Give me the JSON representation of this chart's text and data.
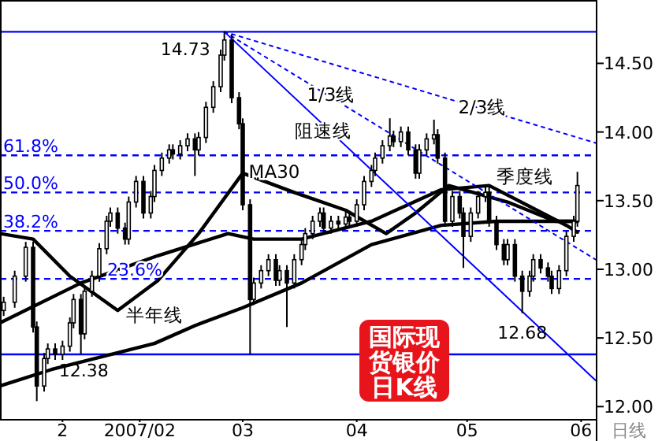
{
  "chart_data": {
    "type": "candlestick",
    "title": "国际现货银价日K线",
    "x": [
      "2006-12-26",
      "2006-12-29",
      "2007-01-01",
      "2007-01-03",
      "2007-01-04",
      "2007-01-06",
      "2007-01-07",
      "2007-01-09",
      "2007-01-11",
      "2007-01-13",
      "2007-01-14",
      "2007-01-16",
      "2007-01-17",
      "2007-01-19",
      "2007-01-21",
      "2007-01-23",
      "2007-01-24",
      "2007-01-26",
      "2007-01-28",
      "2007-01-29",
      "2007-01-31",
      "2007-02-02",
      "2007-02-04",
      "2007-02-05",
      "2007-02-07",
      "2007-02-09",
      "2007-02-10",
      "2007-02-12",
      "2007-02-14",
      "2007-02-16",
      "2007-02-17",
      "2007-02-19",
      "2007-02-21",
      "2007-02-23",
      "2007-02-24",
      "2007-02-26",
      "2007-02-28",
      "2007-03-01",
      "2007-03-03",
      "2007-03-04",
      "2007-03-06",
      "2007-03-08",
      "2007-03-10",
      "2007-03-11",
      "2007-03-13",
      "2007-03-15",
      "2007-03-17",
      "2007-03-18",
      "2007-03-20",
      "2007-03-22",
      "2007-03-23",
      "2007-03-25",
      "2007-03-27",
      "2007-03-29",
      "2007-03-30",
      "2007-04-01",
      "2007-04-03",
      "2007-04-05",
      "2007-04-06",
      "2007-04-08",
      "2007-04-10",
      "2007-04-11",
      "2007-04-13",
      "2007-04-15",
      "2007-04-17",
      "2007-04-18",
      "2007-04-20",
      "2007-04-22",
      "2007-04-23",
      "2007-04-25",
      "2007-04-27",
      "2007-04-29",
      "2007-04-30",
      "2007-05-02",
      "2007-05-04",
      "2007-05-06",
      "2007-05-07",
      "2007-05-09",
      "2007-05-11",
      "2007-05-12",
      "2007-05-14",
      "2007-05-16",
      "2007-05-18",
      "2007-05-19",
      "2007-05-21",
      "2007-05-23",
      "2007-05-24",
      "2007-05-26",
      "2007-05-28",
      "2007-05-30",
      "2007-05-31"
    ],
    "ohlc": [
      [
        12.7,
        12.8,
        12.66,
        12.76
      ],
      [
        12.76,
        12.99,
        12.72,
        12.95
      ],
      [
        12.95,
        13.2,
        12.91,
        13.16
      ],
      [
        13.16,
        13.2,
        12.54,
        12.58
      ],
      [
        12.58,
        12.62,
        12.04,
        12.15
      ],
      [
        12.15,
        12.39,
        12.11,
        12.35
      ],
      [
        12.35,
        12.46,
        12.31,
        12.42
      ],
      [
        12.42,
        12.46,
        12.34,
        12.38
      ],
      [
        12.38,
        12.48,
        12.34,
        12.44
      ],
      [
        12.44,
        12.65,
        12.4,
        12.61
      ],
      [
        12.61,
        12.82,
        12.57,
        12.78
      ],
      [
        12.78,
        12.82,
        12.38,
        12.53
      ],
      [
        12.53,
        12.88,
        12.49,
        12.84
      ],
      [
        12.84,
        12.99,
        12.8,
        12.95
      ],
      [
        12.95,
        13.19,
        12.91,
        13.15
      ],
      [
        13.15,
        13.39,
        13.11,
        13.35
      ],
      [
        13.35,
        13.45,
        13.31,
        13.41
      ],
      [
        13.41,
        13.45,
        13.26,
        13.3
      ],
      [
        13.3,
        13.34,
        13.18,
        13.22
      ],
      [
        13.22,
        13.53,
        13.18,
        13.49
      ],
      [
        13.49,
        13.68,
        13.45,
        13.64
      ],
      [
        13.64,
        13.68,
        13.37,
        13.41
      ],
      [
        13.41,
        13.57,
        13.37,
        13.53
      ],
      [
        13.53,
        13.76,
        13.49,
        13.72
      ],
      [
        13.72,
        13.85,
        13.68,
        13.81
      ],
      [
        13.81,
        13.91,
        13.77,
        13.87
      ],
      [
        13.87,
        13.91,
        13.8,
        13.84
      ],
      [
        13.84,
        13.94,
        13.8,
        13.9
      ],
      [
        13.9,
        13.99,
        13.86,
        13.95
      ],
      [
        13.95,
        13.99,
        13.68,
        13.87
      ],
      [
        13.87,
        14.0,
        13.83,
        13.96
      ],
      [
        13.96,
        14.22,
        13.92,
        14.18
      ],
      [
        14.18,
        14.37,
        14.14,
        14.33
      ],
      [
        14.33,
        14.6,
        14.29,
        14.56
      ],
      [
        14.56,
        14.73,
        14.52,
        14.67
      ],
      [
        14.67,
        14.71,
        14.21,
        14.25
      ],
      [
        14.25,
        14.29,
        14.02,
        14.06
      ],
      [
        14.06,
        14.1,
        13.43,
        13.47
      ],
      [
        13.47,
        13.51,
        12.38,
        12.78
      ],
      [
        12.78,
        12.94,
        12.74,
        12.9
      ],
      [
        12.9,
        13.03,
        12.86,
        12.99
      ],
      [
        12.99,
        13.11,
        12.95,
        13.07
      ],
      [
        13.07,
        13.11,
        12.88,
        12.92
      ],
      [
        12.92,
        13.03,
        12.88,
        12.99
      ],
      [
        12.99,
        13.03,
        12.58,
        12.9
      ],
      [
        12.9,
        13.11,
        12.86,
        13.07
      ],
      [
        13.07,
        13.22,
        13.03,
        13.18
      ],
      [
        13.18,
        13.3,
        13.14,
        13.26
      ],
      [
        13.26,
        13.39,
        13.22,
        13.35
      ],
      [
        13.35,
        13.45,
        13.31,
        13.41
      ],
      [
        13.41,
        13.45,
        13.26,
        13.3
      ],
      [
        13.3,
        13.39,
        13.26,
        13.35
      ],
      [
        13.35,
        13.39,
        13.29,
        13.33
      ],
      [
        13.33,
        13.42,
        13.29,
        13.38
      ],
      [
        13.38,
        13.42,
        13.31,
        13.35
      ],
      [
        13.35,
        13.51,
        13.31,
        13.47
      ],
      [
        13.47,
        13.68,
        13.43,
        13.64
      ],
      [
        13.64,
        13.76,
        13.6,
        13.72
      ],
      [
        13.72,
        13.85,
        13.68,
        13.81
      ],
      [
        13.81,
        13.94,
        13.77,
        13.9
      ],
      [
        13.9,
        14.1,
        13.86,
        13.97
      ],
      [
        13.97,
        14.01,
        13.89,
        13.93
      ],
      [
        13.93,
        14.04,
        13.89,
        14.0
      ],
      [
        14.0,
        14.04,
        13.83,
        13.87
      ],
      [
        13.87,
        13.91,
        13.66,
        13.7
      ],
      [
        13.7,
        13.91,
        13.66,
        13.87
      ],
      [
        13.87,
        13.99,
        13.83,
        13.95
      ],
      [
        13.95,
        14.09,
        13.91,
        13.98
      ],
      [
        13.98,
        14.02,
        13.77,
        13.81
      ],
      [
        13.81,
        13.85,
        13.31,
        13.35
      ],
      [
        13.35,
        13.57,
        13.31,
        13.53
      ],
      [
        13.53,
        13.57,
        13.37,
        13.41
      ],
      [
        13.41,
        13.45,
        13.01,
        13.24
      ],
      [
        13.24,
        13.45,
        13.2,
        13.41
      ],
      [
        13.41,
        13.57,
        13.37,
        13.53
      ],
      [
        13.53,
        13.6,
        13.49,
        13.56
      ],
      [
        13.56,
        13.6,
        13.31,
        13.35
      ],
      [
        13.35,
        13.39,
        13.14,
        13.18
      ],
      [
        13.18,
        13.22,
        13.03,
        13.07
      ],
      [
        13.07,
        13.22,
        13.03,
        13.18
      ],
      [
        13.18,
        13.22,
        12.91,
        12.95
      ],
      [
        12.95,
        12.99,
        12.68,
        12.84
      ],
      [
        12.84,
        12.99,
        12.8,
        12.95
      ],
      [
        12.95,
        13.11,
        12.91,
        13.07
      ],
      [
        13.07,
        13.11,
        12.97,
        13.01
      ],
      [
        13.01,
        13.05,
        12.91,
        12.95
      ],
      [
        12.95,
        12.99,
        12.82,
        12.86
      ],
      [
        12.86,
        13.03,
        12.82,
        12.99
      ],
      [
        12.99,
        13.28,
        12.95,
        13.24
      ],
      [
        13.24,
        13.39,
        13.2,
        13.35
      ],
      [
        13.35,
        13.71,
        13.31,
        13.61
      ]
    ],
    "series": [
      {
        "name": "MA30",
        "type": "line",
        "color": "#000000",
        "x": [
          "2006-12-25",
          "2007-01-03",
          "2007-01-13",
          "2007-01-26",
          "2007-02-06",
          "2007-02-17",
          "2007-03-01",
          "2007-03-15",
          "2007-03-29",
          "2007-04-09",
          "2007-04-17",
          "2007-04-26",
          "2007-05-12",
          "2007-05-25",
          "2007-05-31"
        ],
        "values": [
          13.26,
          13.22,
          12.95,
          12.7,
          12.92,
          13.26,
          13.7,
          13.56,
          13.43,
          13.26,
          13.41,
          13.61,
          13.49,
          13.35,
          13.35
        ]
      },
      {
        "name": "季度线",
        "type": "line",
        "color": "#000000",
        "x": [
          "2006-12-25",
          "2007-01-16",
          "2007-02-06",
          "2007-02-25",
          "2007-03-04",
          "2007-03-17",
          "2007-04-05",
          "2007-04-24",
          "2007-05-07",
          "2007-05-28",
          "2007-05-31"
        ],
        "values": [
          12.61,
          12.9,
          13.1,
          13.26,
          13.22,
          13.22,
          13.35,
          13.58,
          13.61,
          13.32,
          13.27
        ]
      },
      {
        "name": "半年线",
        "type": "line",
        "color": "#000000",
        "x": [
          "2006-12-25",
          "2007-01-08",
          "2007-02-05",
          "2007-02-16",
          "2007-03-01",
          "2007-03-17",
          "2007-04-05",
          "2007-04-24",
          "2007-05-09",
          "2007-05-31"
        ],
        "values": [
          12.15,
          12.27,
          12.46,
          12.59,
          12.72,
          12.9,
          13.18,
          13.32,
          13.35,
          13.35
        ]
      },
      {
        "name": "阻速线",
        "type": "line",
        "color": "#0000ff",
        "line_style": "solid",
        "x": [
          "2007-02-24",
          "2007-06-05"
        ],
        "values": [
          14.73,
          12.19
        ]
      },
      {
        "name": "1/3线",
        "type": "line",
        "color": "#0000ff",
        "line_style": "dotted",
        "x": [
          "2007-02-24",
          "2007-06-05"
        ],
        "values": [
          14.73,
          13.07
        ]
      },
      {
        "name": "2/3线",
        "type": "line",
        "color": "#0000ff",
        "line_style": "dotted",
        "x": [
          "2007-02-24",
          "2007-06-05"
        ],
        "values": [
          14.73,
          13.92
        ]
      }
    ],
    "ref_lines": [
      {
        "axis": "y",
        "value": 13.83,
        "color": "#0000ff",
        "line_style": "dashed"
      },
      {
        "axis": "y",
        "value": 13.56,
        "color": "#0000ff",
        "line_style": "dashed"
      },
      {
        "axis": "y",
        "value": 13.28,
        "color": "#0000ff",
        "line_style": "dashed"
      },
      {
        "axis": "y",
        "value": 12.93,
        "color": "#0000ff",
        "line_style": "dashed"
      },
      {
        "axis": "y",
        "value": 14.73,
        "label": "14.73",
        "color": "#0000ff",
        "line_style": "solid"
      },
      {
        "axis": "y",
        "value": 12.38,
        "label": "12.38",
        "color": "#0000ff",
        "line_style": "solid"
      }
    ],
    "annotations": [
      "61.8%",
      "50.0%",
      "38.2%",
      "23.6%",
      {
        "text": "12.68",
        "x": "2007-05-16",
        "y": 12.68
      },
      "日线"
    ],
    "xlim": [
      "2006-12-25",
      "2007-06-05"
    ],
    "xticks": [
      {
        "value": "2007-01-11",
        "label": "2"
      },
      {
        "value": "2007-02-01",
        "label": "2007/02"
      },
      {
        "value": "2007-03-01",
        "label": "03"
      },
      {
        "value": "2007-04-01",
        "label": "04"
      },
      {
        "value": "2007-05-01",
        "label": "05"
      },
      {
        "value": "2007-06-01",
        "label": "06"
      }
    ],
    "ylim": [
      11.91,
      14.95
    ],
    "yticks": [
      {
        "value": 12,
        "label": "12.00"
      },
      {
        "value": 12.5,
        "label": "12.50"
      },
      {
        "value": 13,
        "label": "13.00"
      },
      {
        "value": 13.5,
        "label": "13.50"
      },
      {
        "value": 14,
        "label": "14.00"
      },
      {
        "value": 14.5,
        "label": "14.50"
      }
    ]
  }
}
